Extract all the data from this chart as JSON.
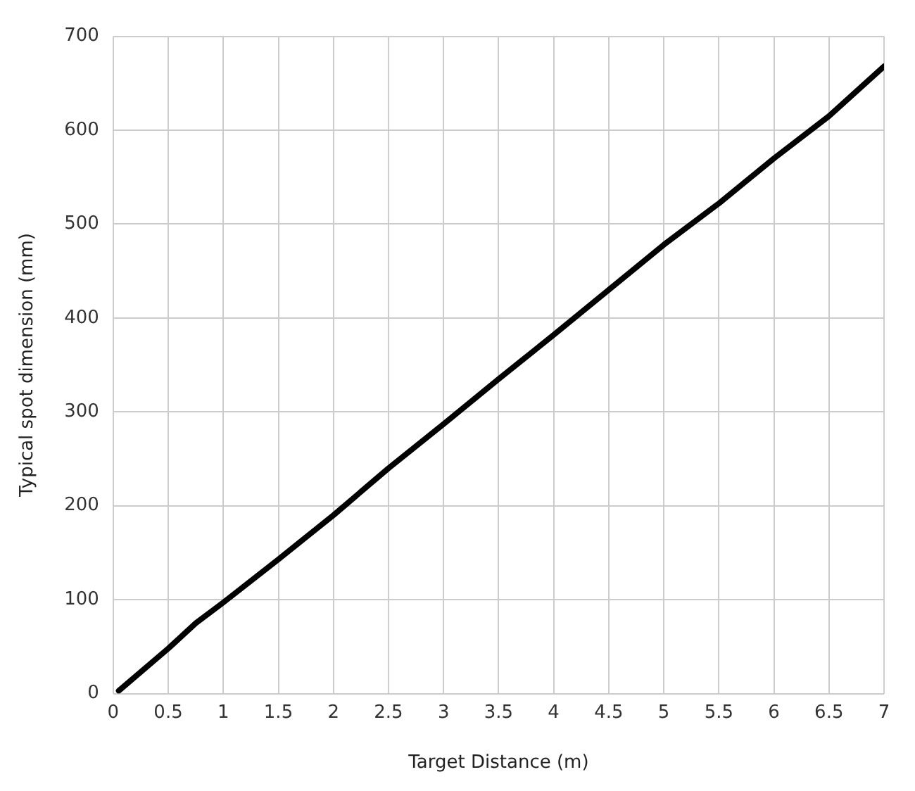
{
  "chart_data": {
    "type": "line",
    "xlabel": "Target Distance (m)",
    "ylabel": "Typical spot dimension (mm)",
    "x": [
      0.05,
      0.5,
      0.75,
      1,
      1.5,
      2,
      2.5,
      3,
      3.5,
      4,
      4.5,
      5,
      5.5,
      6,
      6.5,
      7
    ],
    "series": [
      {
        "color": "#000000",
        "values": [
          3,
          48,
          75,
          97,
          143,
          190,
          240,
          287,
          335,
          382,
          430,
          478,
          522,
          570,
          615,
          668
        ]
      }
    ],
    "xlim": [
      0,
      7
    ],
    "xticks": [
      0,
      0.5,
      1,
      1.5,
      2,
      2.5,
      3,
      3.5,
      4,
      4.5,
      5,
      5.5,
      6,
      6.5,
      7
    ],
    "ylim": [
      0,
      700
    ],
    "yticks": [
      0,
      100,
      200,
      300,
      400,
      500,
      600,
      700
    ],
    "grid": true,
    "legend": false,
    "marker": "none",
    "line_style": "solid"
  }
}
